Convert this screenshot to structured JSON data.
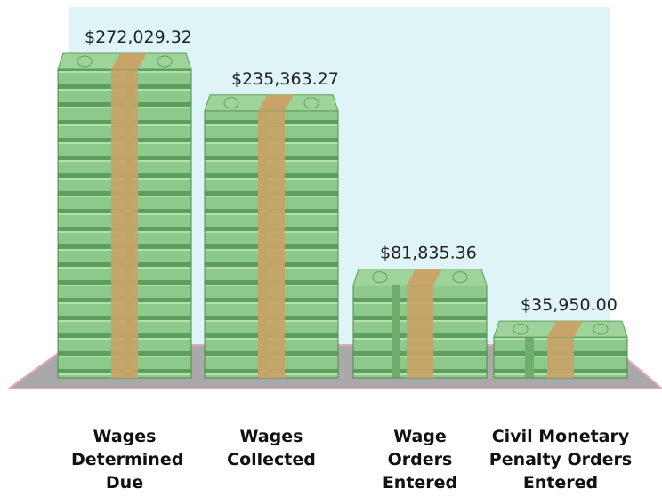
{
  "chart_data": {
    "type": "bar",
    "categories": [
      "Wages Determined Due",
      "Wages Collected",
      "Wage Orders Entered",
      "Civil Monetary Penalty Orders Entered"
    ],
    "values": [
      272029.32,
      235363.27,
      81835.36,
      35950.0
    ],
    "value_labels": [
      "$272,029.32",
      "$235,363.27",
      "$81,835.36",
      "$35,950.00"
    ],
    "color": "#8cc98a"
  }
}
